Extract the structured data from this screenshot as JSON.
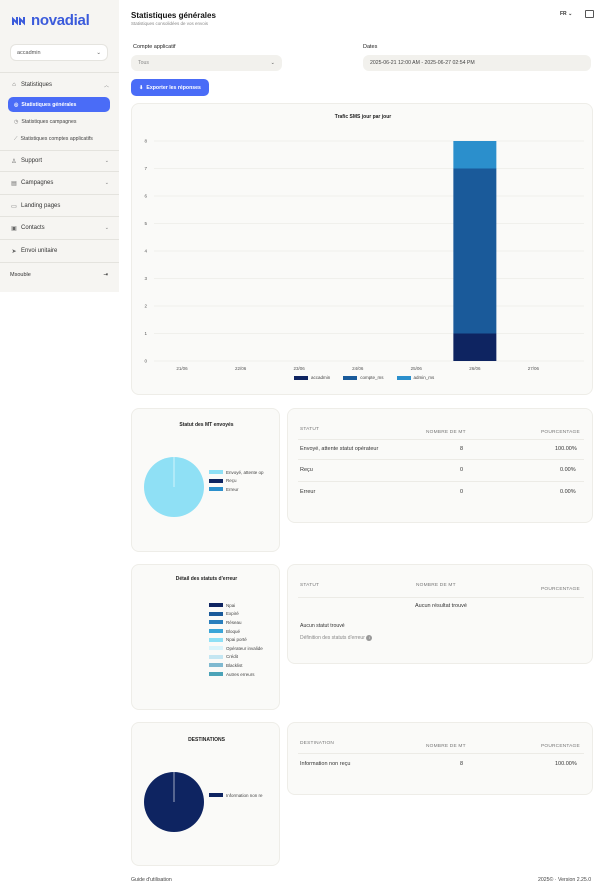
{
  "brand": {
    "name": "novadial",
    "color": "#3b5bdb"
  },
  "sidebar": {
    "account_value": "accadmin",
    "nav": {
      "statistiques": "Statistiques",
      "stats_generales": "Statistiques générales",
      "stats_campagnes": "Statistiques campagnes",
      "stats_comptes": "Statistiques comptes applicatifs",
      "support": "Support",
      "campagnes": "Campagnes",
      "landing": "Landing pages",
      "contacts": "Contacts",
      "envoi": "Envoi unitaire"
    },
    "user": "Msouble"
  },
  "header": {
    "title": "Statistiques générales",
    "subtitle": "Statistiques consolidées de vos envois",
    "lang": "FR"
  },
  "filters": {
    "account_label": "Compte applicatif",
    "account_value": "Tous",
    "dates_label": "Dates",
    "dates_value": "2025-06-21 12:00 AM - 2025-06-27 02:54 PM"
  },
  "export_label": "Exporter les réponses",
  "chart_data": [
    {
      "type": "bar",
      "title": "Trafic SMS jour par jour",
      "categories": [
        "21/06",
        "22/06",
        "23/06",
        "24/06",
        "25/06",
        "26/06",
        "27/06"
      ],
      "series": [
        {
          "name": "accadmin",
          "color": "#0e2461",
          "values": [
            0,
            0,
            0,
            0,
            0,
            1,
            0
          ]
        },
        {
          "name": "compte_ms",
          "color": "#1a5a9a",
          "values": [
            0,
            0,
            0,
            0,
            0,
            6,
            0
          ]
        },
        {
          "name": "admin_ms",
          "color": "#2b8fcc",
          "values": [
            0,
            0,
            0,
            0,
            0,
            1,
            0
          ]
        }
      ],
      "ylim": [
        0,
        8
      ],
      "yticks": [
        "0",
        "1",
        "2",
        "3",
        "4",
        "5",
        "6",
        "7",
        "8"
      ],
      "stacked": true,
      "grid": true,
      "legend": "bottom"
    },
    {
      "type": "pie",
      "title": "Statut des MT envoyés",
      "labels": [
        "Envoyé, attente op",
        "Reçu",
        "Erreur"
      ],
      "colors": [
        "#8fe0f5",
        "#0e2461",
        "#2b8fcc"
      ],
      "values": [
        100,
        0,
        0
      ],
      "legend": "right"
    },
    {
      "type": "pie",
      "title": "DESTINATIONS",
      "labels": [
        "Information non re"
      ],
      "colors": [
        "#0e2461"
      ],
      "values": [
        100
      ],
      "legend": "right"
    }
  ],
  "status_table": {
    "headers": [
      "STATUT",
      "NOMBRE DE MT",
      "POURCENTAGE"
    ],
    "rows": [
      {
        "statut": "Envoyé, attente statut opérateur",
        "nb": "8",
        "pct": "100.00%"
      },
      {
        "statut": "Reçu",
        "nb": "0",
        "pct": "0.00%"
      },
      {
        "statut": "Erreur",
        "nb": "0",
        "pct": "0.00%"
      }
    ]
  },
  "error_detail": {
    "title": "Détail des statuts d'erreur",
    "legend": [
      {
        "label": "Npai",
        "color": "#0e2461"
      },
      {
        "label": "Expiré",
        "color": "#1a5a9a"
      },
      {
        "label": "Réseau",
        "color": "#2a7fbd"
      },
      {
        "label": "Bloqué",
        "color": "#3aa5d8"
      },
      {
        "label": "Npai porté",
        "color": "#8fe0f5"
      },
      {
        "label": "Opérateur invalide",
        "color": "#d9f4fb"
      },
      {
        "label": "Crédit",
        "color": "#c4e6f2"
      },
      {
        "label": "Blacklist",
        "color": "#7fb9d0"
      },
      {
        "label": "Autres erreurs",
        "color": "#4ba3b8"
      }
    ],
    "table_headers": [
      "STATUT",
      "NOMBRE DE MT",
      "POURCENTAGE"
    ],
    "empty_text": "Aucun résultat trouvé",
    "no_status": "Aucun statut trouvé",
    "definition_link": "Définition des statuts d'erreur"
  },
  "dest_table": {
    "headers": [
      "DESTINATION",
      "NOMBRE DE MT",
      "POURCENTAGE"
    ],
    "rows": [
      {
        "dest": "Information non reçu",
        "nb": "8",
        "pct": "100.00%"
      }
    ]
  },
  "footer": {
    "guide": "Guide d'utilisation",
    "version": "2025© · Version 2.25.0"
  }
}
